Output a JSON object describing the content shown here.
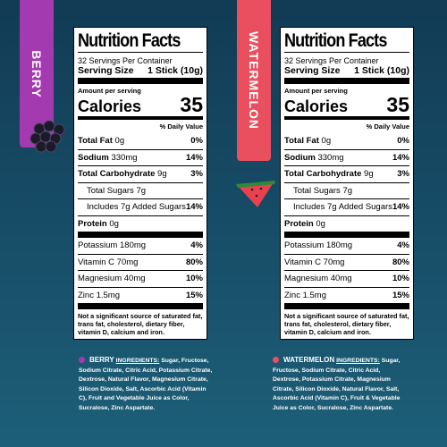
{
  "tabs": [
    "BERRY",
    "WATERMELON"
  ],
  "panels": [
    {
      "title": "Nutrition Facts",
      "servings": "32 Servings Per Container",
      "serving_size_label": "Serving Size",
      "serving_size": "1 Stick (10g)",
      "amount_per_serving": "Amount per serving",
      "calories_label": "Calories",
      "calories": 35,
      "daily_value_header": "% Daily Value",
      "rows": [
        {
          "label": "Total Fat",
          "amount": "0g",
          "dv": "0%"
        },
        {
          "label": "Sodium",
          "amount": "330mg",
          "dv": "14%"
        },
        {
          "label": "Total Carbohydrate",
          "amount": "9g",
          "dv": "3%"
        },
        {
          "label": "Total Sugars",
          "amount": "7g",
          "dv": ""
        },
        {
          "label": "Includes 7g Added Sugars",
          "amount": "",
          "dv": "14%"
        },
        {
          "label": "Protein",
          "amount": "0g",
          "dv": ""
        },
        {
          "label": "Potassium",
          "amount": "180mg",
          "dv": "4%"
        },
        {
          "label": "Vitamin C",
          "amount": "70mg",
          "dv": "80%"
        },
        {
          "label": "Magnesium",
          "amount": "40mg",
          "dv": "10%"
        },
        {
          "label": "Zinc",
          "amount": "1.5mg",
          "dv": "15%"
        }
      ],
      "footnote": "Not a significant source of saturated fat, trans fat, cholesterol, dietary fiber, vitamin D, calcium and iron.",
      "ingredients_flavor": "BERRY",
      "ingredients_label": "INGREDIENTS:",
      "ingredients": "Sugar, Fructose, Sodium Citrate, Citric Acid, Potassium Citrate, Dextrose, Natural Flavor, Magnesium Citrate, Silicon Dioxide, Salt, Ascorbic Acid (Vitamin C), Fruit and Vegetable Juice as Color, Sucralose, Zinc Aspartate."
    },
    {
      "title": "Nutrition Facts",
      "servings": "32 Servings Per Container",
      "serving_size_label": "Serving Size",
      "serving_size": "1 Stick (10g)",
      "amount_per_serving": "Amount per serving",
      "calories_label": "Calories",
      "calories": 35,
      "daily_value_header": "% Daily Value",
      "rows": [
        {
          "label": "Total Fat",
          "amount": "0g",
          "dv": "0%"
        },
        {
          "label": "Sodium",
          "amount": "330mg",
          "dv": "14%"
        },
        {
          "label": "Total Carbohydrate",
          "amount": "9g",
          "dv": "3%"
        },
        {
          "label": "Total Sugars",
          "amount": "7g",
          "dv": ""
        },
        {
          "label": "Includes 7g Added Sugars",
          "amount": "",
          "dv": "14%"
        },
        {
          "label": "Protein",
          "amount": "0g",
          "dv": ""
        },
        {
          "label": "Potassium",
          "amount": "180mg",
          "dv": "4%"
        },
        {
          "label": "Vitamin C",
          "amount": "70mg",
          "dv": "80%"
        },
        {
          "label": "Magnesium",
          "amount": "40mg",
          "dv": "10%"
        },
        {
          "label": "Zinc",
          "amount": "1.5mg",
          "dv": "15%"
        }
      ],
      "footnote": "Not a significant source of saturated fat, trans fat, cholesterol, dietary fiber, vitamin D, calcium and iron.",
      "ingredients_flavor": "WATERMELON",
      "ingredients_label": "INGREDIENTS:",
      "ingredients": "Sugar, Fructose, Sodium Citrate, Citric Acid, Dextrose, Potassium Citrate, Magnesium Citrate, Silicon Dioxide, Natural Flavor, Salt, Ascorbic Acid (Vitamin C), Fruit & Vegetable Juice as Color, Sucralose, Zinc Aspartate."
    }
  ]
}
